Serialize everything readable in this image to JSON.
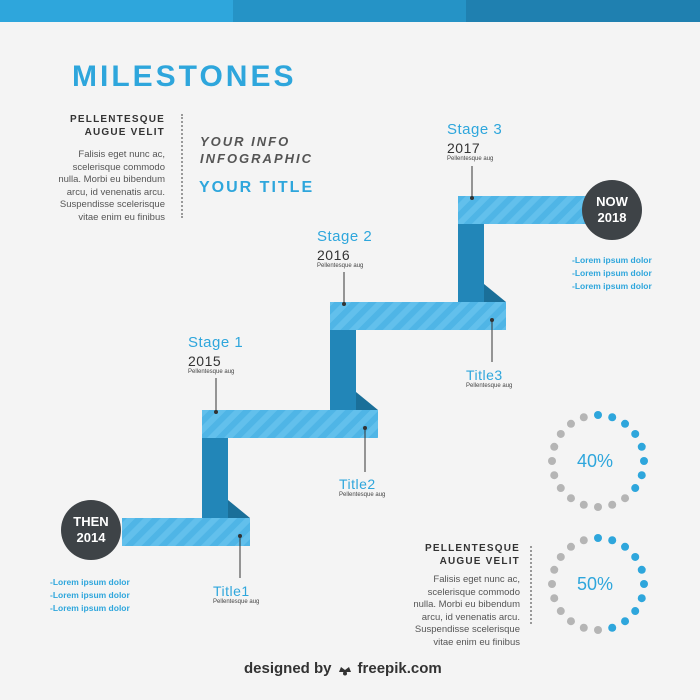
{
  "colors": {
    "accent": "#2ea6dc",
    "dark": "#3e4347",
    "stripe_light": "#5bbbe8",
    "stripe_dark": "#1d7fb0",
    "dot_grey": "#b5b5b5",
    "dot_blue": "#2ea6dc"
  },
  "header": {
    "title": "MILESTONES"
  },
  "intro": {
    "heading_line1": "PELLENTESQUE",
    "heading_line2": "AUGUE VELIT",
    "lines": [
      "Falisis eget nunc ac,",
      "scelerisque commodo",
      "nulla. Morbi eu bibendum",
      "arcu, id venenatis arcu.",
      "Suspendisse scelerisque",
      "vitae enim eu finibus"
    ]
  },
  "info": {
    "line1": "YOUR INFO",
    "line2": "INFOGRAPHIC",
    "your_title": "YOUR TITLE"
  },
  "stages": [
    {
      "label": "Stage 1",
      "year": "2015",
      "sub": "Pellentesque aug"
    },
    {
      "label": "Stage 2",
      "year": "2016",
      "sub": "Pellentesque aug"
    },
    {
      "label": "Stage 3",
      "year": "2017",
      "sub": "Pellentesque aug"
    }
  ],
  "titles": [
    {
      "label": "Title1",
      "sub": "Pellentesque aug"
    },
    {
      "label": "Title2",
      "sub": "Pellentesque aug"
    },
    {
      "label": "Title3",
      "sub": "Pellentesque aug"
    }
  ],
  "then": {
    "line1": "THEN",
    "line2": "2014",
    "bullets": [
      "-Lorem ipsum dolor",
      "-Lorem ipsum dolor",
      "-Lorem ipsum dolor"
    ]
  },
  "now": {
    "line1": "NOW",
    "line2": "2018",
    "bullets": [
      "-Lorem ipsum dolor",
      "-Lorem ipsum dolor",
      "-Lorem ipsum dolor"
    ]
  },
  "bottom_block": {
    "heading_line1": "PELLENTESQUE",
    "heading_line2": "AUGUE VELIT",
    "lines": [
      "Falisis eget nunc ac,",
      "scelerisque commodo",
      "nulla. Morbi eu bibendum",
      "arcu, id venenatis arcu.",
      "Suspendisse scelerisque",
      "vitae enim eu finibus"
    ]
  },
  "progress": [
    {
      "label": "40%",
      "value": 0.4
    },
    {
      "label": "50%",
      "value": 0.5
    }
  ],
  "footer": {
    "prefix": "designed by",
    "brand": "freepik.com"
  }
}
